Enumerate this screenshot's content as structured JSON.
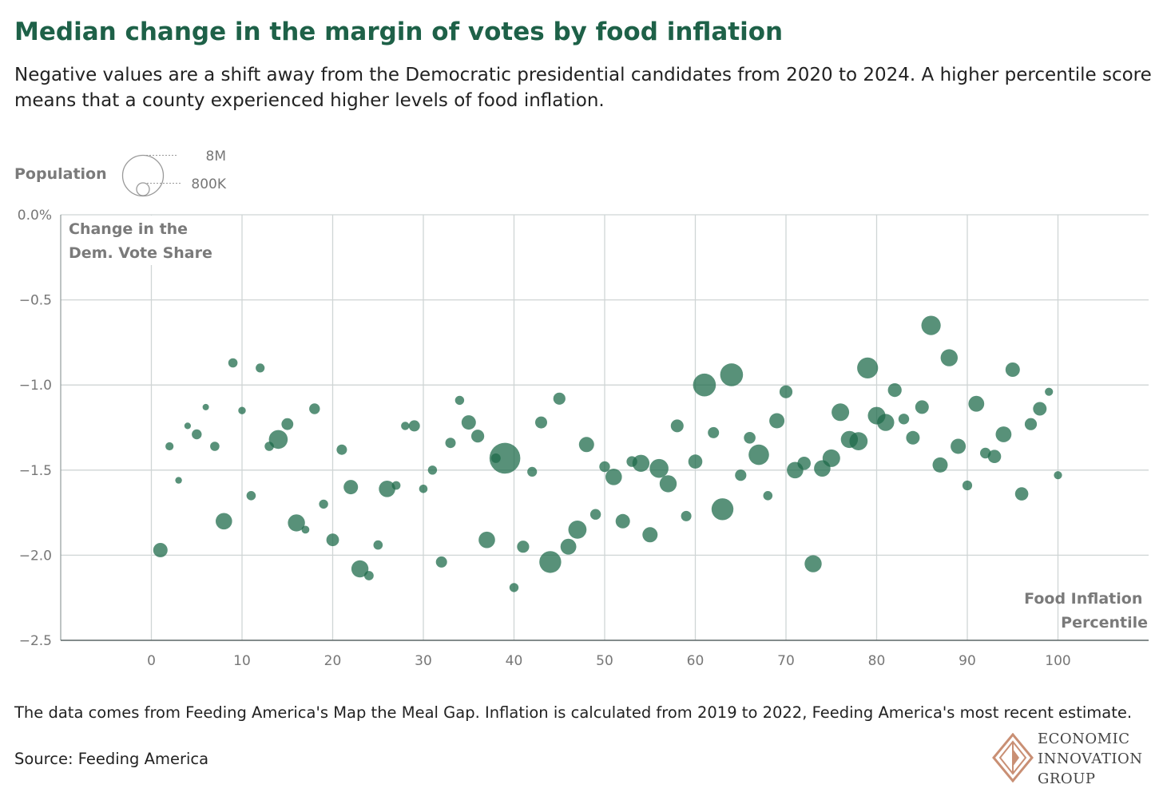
{
  "title": "Median change in the margin of votes by food inflation",
  "subtitle": "Negative values are a shift away from the Democratic presidential candidates from 2020 to 2024. A higher percentile score means that a county experienced higher levels of food inflation.",
  "footnote": "The data comes from Feeding America's Map the Meal Gap. Inflation is calculated from 2019 to 2022, Feeding America's most recent estimate.",
  "source": "Source: Feeding America",
  "logo": {
    "line1": "ECONOMIC",
    "line2": "INNOVATION",
    "line3": "GROUP",
    "icon": "diamond-logo-icon",
    "color": "#c98f74"
  },
  "colors": {
    "bubble": "#1e6b4a",
    "title": "#1e6148"
  },
  "chart_data": {
    "type": "scatter",
    "title": "Median change in the margin of votes by food inflation",
    "xlabel": "Food Inflation Percentile",
    "ylabel": "Change in the Dem. Vote Share",
    "xlim": [
      -10,
      110
    ],
    "ylim": [
      -2.5,
      0
    ],
    "x_ticks": [
      0,
      10,
      20,
      30,
      40,
      50,
      60,
      70,
      80,
      90,
      100
    ],
    "x_tick_labels": [
      "0",
      "10",
      "20",
      "30",
      "40",
      "50",
      "60",
      "70",
      "80",
      "90",
      "100"
    ],
    "y_ticks": [
      0,
      -0.5,
      -1.0,
      -1.5,
      -2.0,
      -2.5
    ],
    "y_tick_labels": [
      "0.0%",
      "−0.5",
      "−1.0",
      "−1.5",
      "−2.0",
      "−2.5"
    ],
    "grid": true,
    "size_legend": {
      "title": "Population",
      "labels": [
        "8M",
        "800K"
      ],
      "values": [
        8000000,
        800000
      ]
    },
    "points": [
      {
        "x": 1,
        "y": -1.97,
        "pop": 1000000
      },
      {
        "x": 2,
        "y": -1.36,
        "pop": 320000
      },
      {
        "x": 3,
        "y": -1.56,
        "pop": 220000
      },
      {
        "x": 4,
        "y": -1.24,
        "pop": 210000
      },
      {
        "x": 5,
        "y": -1.29,
        "pop": 480000
      },
      {
        "x": 6,
        "y": -1.13,
        "pop": 200000
      },
      {
        "x": 7,
        "y": -1.36,
        "pop": 420000
      },
      {
        "x": 8,
        "y": -1.8,
        "pop": 1300000
      },
      {
        "x": 9,
        "y": -0.87,
        "pop": 420000
      },
      {
        "x": 10,
        "y": -1.15,
        "pop": 270000
      },
      {
        "x": 11,
        "y": -1.65,
        "pop": 420000
      },
      {
        "x": 12,
        "y": -0.9,
        "pop": 380000
      },
      {
        "x": 13,
        "y": -1.36,
        "pop": 420000
      },
      {
        "x": 14,
        "y": -1.32,
        "pop": 1700000
      },
      {
        "x": 15,
        "y": -1.23,
        "pop": 680000
      },
      {
        "x": 16,
        "y": -1.81,
        "pop": 1400000
      },
      {
        "x": 17,
        "y": -1.85,
        "pop": 300000
      },
      {
        "x": 18,
        "y": -1.14,
        "pop": 560000
      },
      {
        "x": 19,
        "y": -1.7,
        "pop": 400000
      },
      {
        "x": 20,
        "y": -1.91,
        "pop": 760000
      },
      {
        "x": 21,
        "y": -1.38,
        "pop": 520000
      },
      {
        "x": 22,
        "y": -1.6,
        "pop": 1000000
      },
      {
        "x": 23,
        "y": -2.08,
        "pop": 1400000
      },
      {
        "x": 24,
        "y": -2.12,
        "pop": 430000
      },
      {
        "x": 25,
        "y": -1.94,
        "pop": 420000
      },
      {
        "x": 26,
        "y": -1.61,
        "pop": 1300000
      },
      {
        "x": 27,
        "y": -1.59,
        "pop": 360000
      },
      {
        "x": 28,
        "y": -1.24,
        "pop": 330000
      },
      {
        "x": 29,
        "y": -1.24,
        "pop": 600000
      },
      {
        "x": 30,
        "y": -1.61,
        "pop": 350000
      },
      {
        "x": 31,
        "y": -1.5,
        "pop": 400000
      },
      {
        "x": 32,
        "y": -2.04,
        "pop": 600000
      },
      {
        "x": 33,
        "y": -1.34,
        "pop": 520000
      },
      {
        "x": 34,
        "y": -1.09,
        "pop": 400000
      },
      {
        "x": 35,
        "y": -1.22,
        "pop": 1000000
      },
      {
        "x": 36,
        "y": -1.3,
        "pop": 800000
      },
      {
        "x": 37,
        "y": -1.91,
        "pop": 1300000
      },
      {
        "x": 38,
        "y": -1.43,
        "pop": 450000
      },
      {
        "x": 39,
        "y": -1.43,
        "pop": 4600000
      },
      {
        "x": 40,
        "y": -2.19,
        "pop": 400000
      },
      {
        "x": 41,
        "y": -1.95,
        "pop": 720000
      },
      {
        "x": 42,
        "y": -1.51,
        "pop": 460000
      },
      {
        "x": 43,
        "y": -1.22,
        "pop": 700000
      },
      {
        "x": 44,
        "y": -2.04,
        "pop": 2300000
      },
      {
        "x": 45,
        "y": -1.08,
        "pop": 720000
      },
      {
        "x": 46,
        "y": -1.95,
        "pop": 1200000
      },
      {
        "x": 47,
        "y": -1.85,
        "pop": 1600000
      },
      {
        "x": 48,
        "y": -1.35,
        "pop": 1100000
      },
      {
        "x": 49,
        "y": -1.76,
        "pop": 560000
      },
      {
        "x": 50,
        "y": -1.48,
        "pop": 560000
      },
      {
        "x": 51,
        "y": -1.54,
        "pop": 1300000
      },
      {
        "x": 52,
        "y": -1.8,
        "pop": 1000000
      },
      {
        "x": 53,
        "y": -1.45,
        "pop": 560000
      },
      {
        "x": 54,
        "y": -1.46,
        "pop": 1400000
      },
      {
        "x": 55,
        "y": -1.88,
        "pop": 1100000
      },
      {
        "x": 56,
        "y": -1.49,
        "pop": 1700000
      },
      {
        "x": 57,
        "y": -1.58,
        "pop": 1400000
      },
      {
        "x": 58,
        "y": -1.24,
        "pop": 780000
      },
      {
        "x": 59,
        "y": -1.77,
        "pop": 520000
      },
      {
        "x": 60,
        "y": -1.45,
        "pop": 960000
      },
      {
        "x": 61,
        "y": -1.0,
        "pop": 2500000
      },
      {
        "x": 62,
        "y": -1.28,
        "pop": 600000
      },
      {
        "x": 63,
        "y": -1.73,
        "pop": 2300000
      },
      {
        "x": 64,
        "y": -0.94,
        "pop": 2500000
      },
      {
        "x": 65,
        "y": -1.53,
        "pop": 620000
      },
      {
        "x": 66,
        "y": -1.31,
        "pop": 660000
      },
      {
        "x": 67,
        "y": -1.41,
        "pop": 2000000
      },
      {
        "x": 68,
        "y": -1.65,
        "pop": 420000
      },
      {
        "x": 69,
        "y": -1.21,
        "pop": 1100000
      },
      {
        "x": 70,
        "y": -1.04,
        "pop": 800000
      },
      {
        "x": 71,
        "y": -1.5,
        "pop": 1300000
      },
      {
        "x": 72,
        "y": -1.46,
        "pop": 840000
      },
      {
        "x": 73,
        "y": -2.05,
        "pop": 1400000
      },
      {
        "x": 74,
        "y": -1.49,
        "pop": 1300000
      },
      {
        "x": 75,
        "y": -1.43,
        "pop": 1500000
      },
      {
        "x": 76,
        "y": -1.16,
        "pop": 1500000
      },
      {
        "x": 77,
        "y": -1.32,
        "pop": 1400000
      },
      {
        "x": 78,
        "y": -1.33,
        "pop": 1600000
      },
      {
        "x": 79,
        "y": -0.9,
        "pop": 2100000
      },
      {
        "x": 80,
        "y": -1.18,
        "pop": 1500000
      },
      {
        "x": 81,
        "y": -1.22,
        "pop": 1400000
      },
      {
        "x": 82,
        "y": -1.03,
        "pop": 920000
      },
      {
        "x": 83,
        "y": -1.2,
        "pop": 560000
      },
      {
        "x": 84,
        "y": -1.31,
        "pop": 880000
      },
      {
        "x": 85,
        "y": -1.13,
        "pop": 880000
      },
      {
        "x": 86,
        "y": -0.65,
        "pop": 1800000
      },
      {
        "x": 87,
        "y": -1.47,
        "pop": 1100000
      },
      {
        "x": 88,
        "y": -0.84,
        "pop": 1400000
      },
      {
        "x": 89,
        "y": -1.36,
        "pop": 1100000
      },
      {
        "x": 90,
        "y": -1.59,
        "pop": 460000
      },
      {
        "x": 91,
        "y": -1.11,
        "pop": 1200000
      },
      {
        "x": 92,
        "y": -1.4,
        "pop": 560000
      },
      {
        "x": 93,
        "y": -1.42,
        "pop": 840000
      },
      {
        "x": 94,
        "y": -1.29,
        "pop": 1200000
      },
      {
        "x": 95,
        "y": -0.91,
        "pop": 1000000
      },
      {
        "x": 96,
        "y": -1.64,
        "pop": 840000
      },
      {
        "x": 97,
        "y": -1.23,
        "pop": 720000
      },
      {
        "x": 98,
        "y": -1.14,
        "pop": 880000
      },
      {
        "x": 99,
        "y": -1.04,
        "pop": 320000
      },
      {
        "x": 100,
        "y": -1.53,
        "pop": 320000
      }
    ]
  }
}
